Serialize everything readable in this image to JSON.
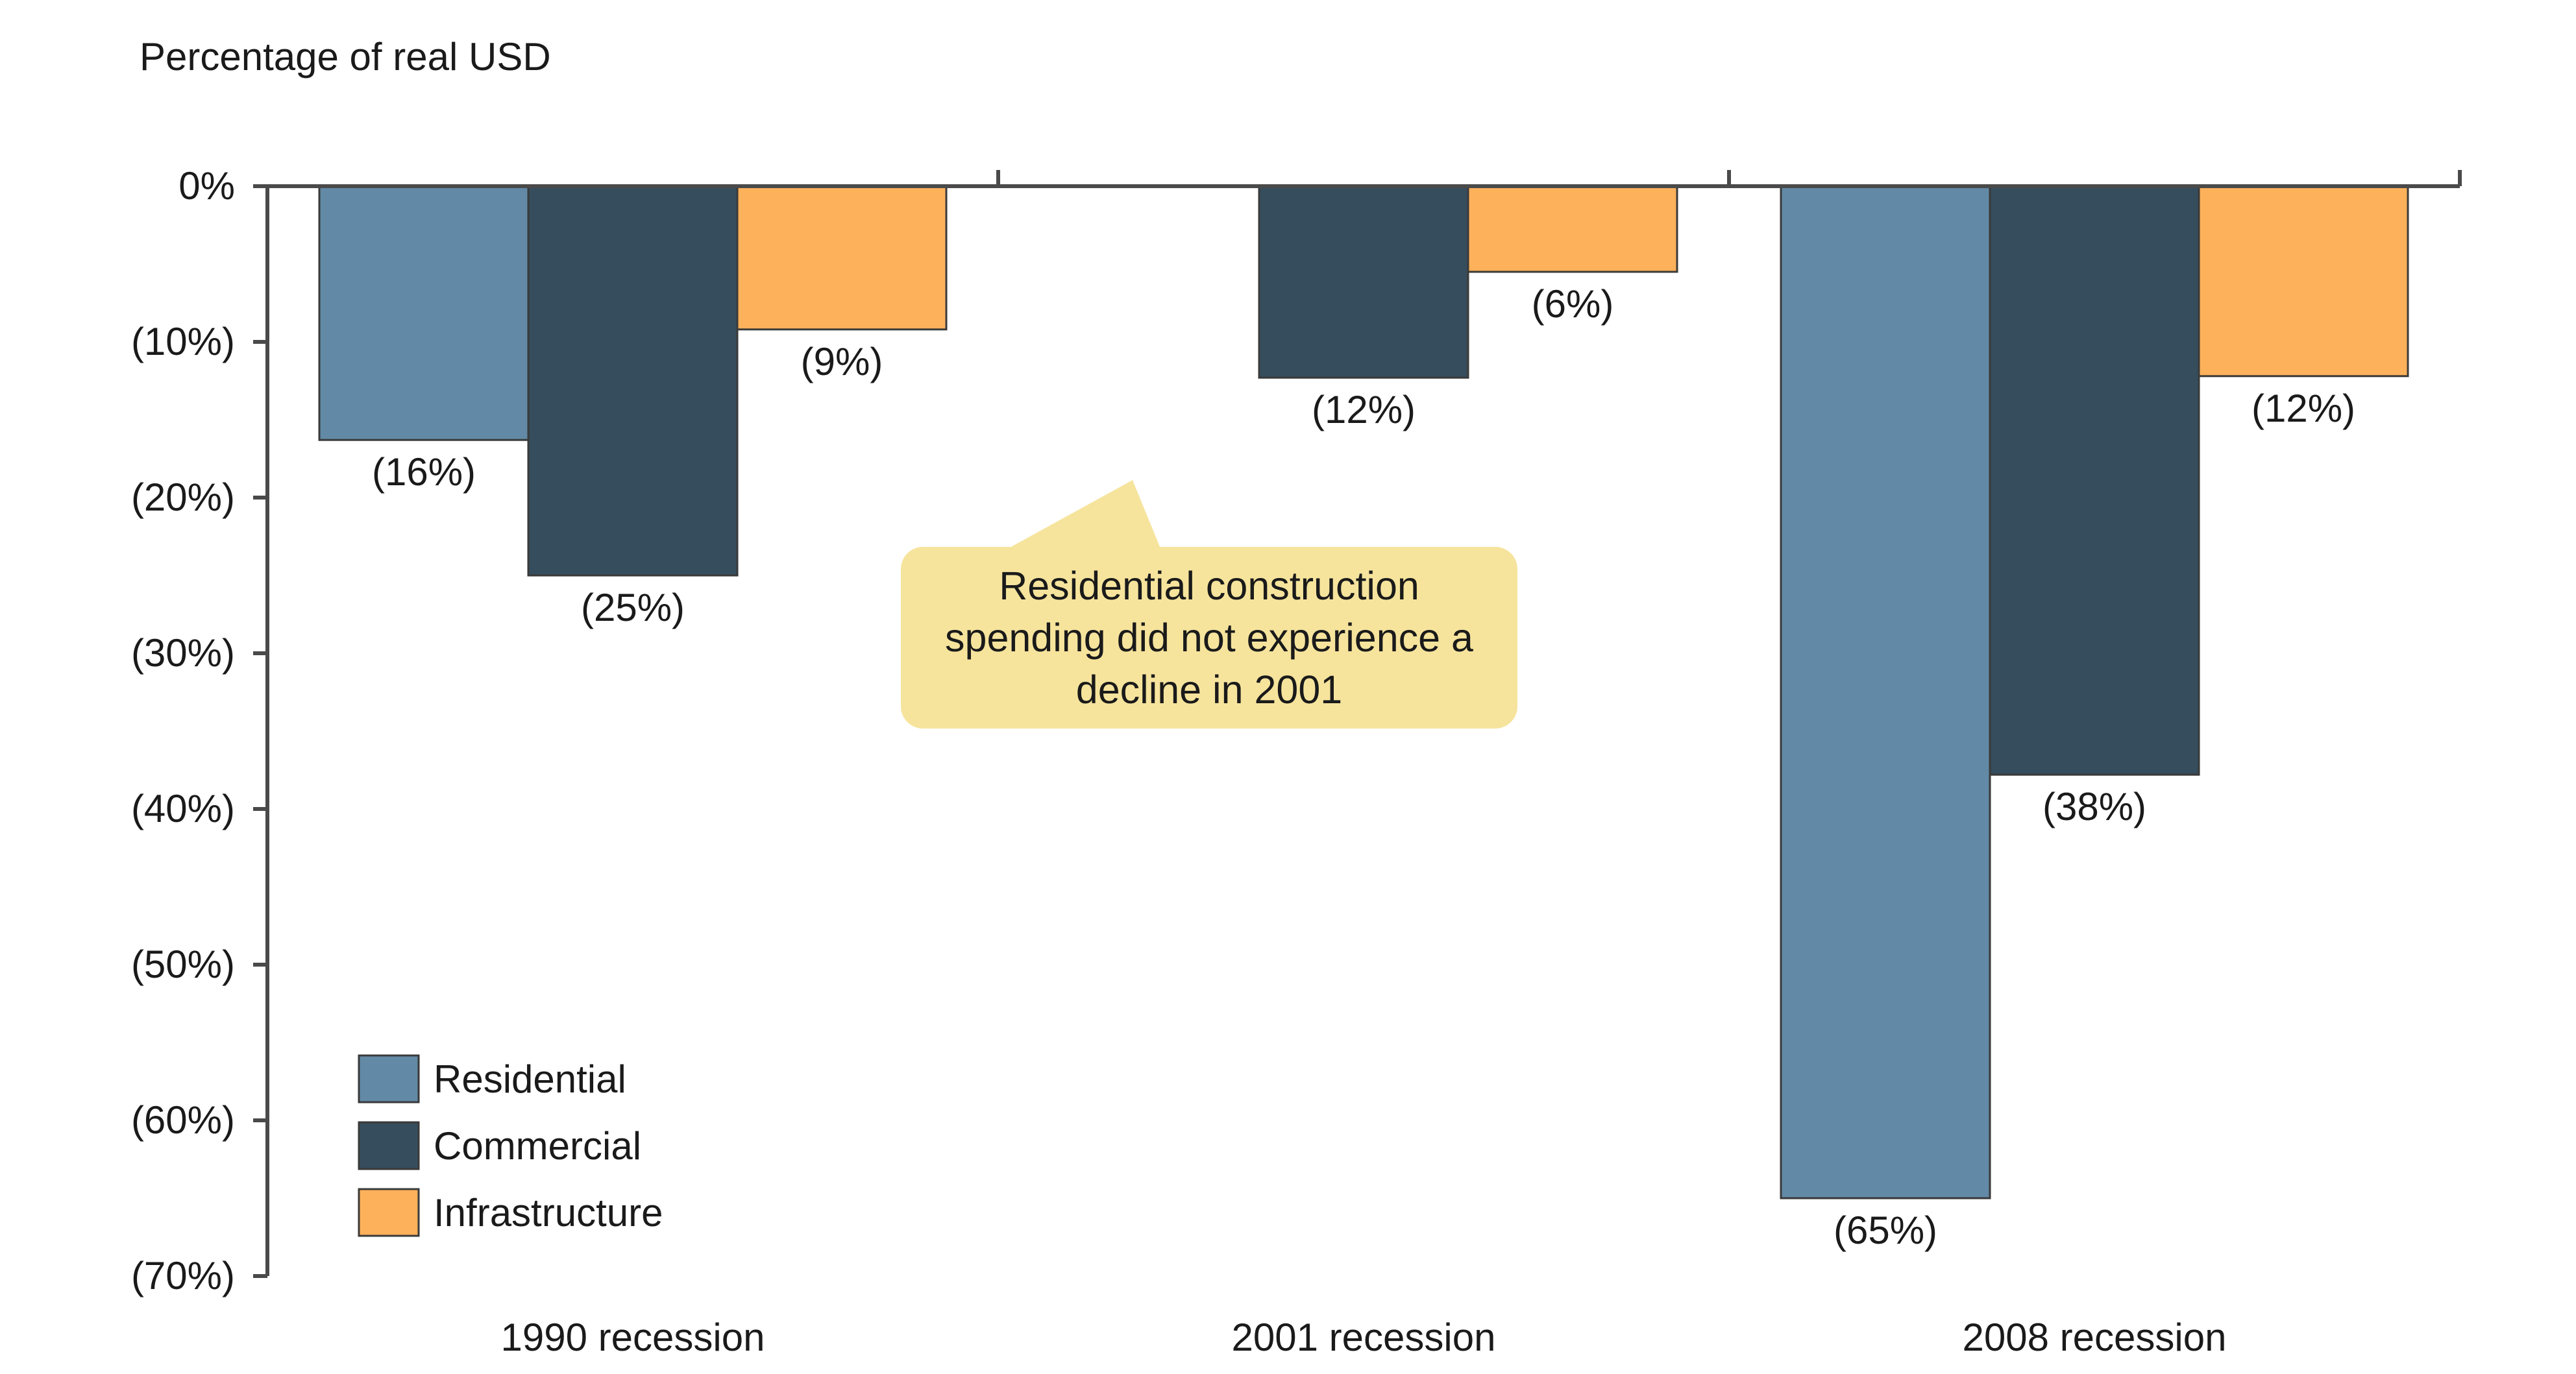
{
  "chart_data": {
    "type": "bar",
    "ylabel": "Percentage of real USD",
    "ylim": [
      -70,
      0
    ],
    "y_ticks": [
      {
        "value": 0,
        "label": "0%"
      },
      {
        "value": -10,
        "label": "(10%)"
      },
      {
        "value": -20,
        "label": "(20%)"
      },
      {
        "value": -30,
        "label": "(30%)"
      },
      {
        "value": -40,
        "label": "(40%)"
      },
      {
        "value": -50,
        "label": "(50%)"
      },
      {
        "value": -60,
        "label": "(60%)"
      },
      {
        "value": -70,
        "label": "(70%)"
      }
    ],
    "categories": [
      "1990 recession",
      "2001 recession",
      "2008 recession"
    ],
    "series": [
      {
        "name": "Residential",
        "color": "#628aa6",
        "values": [
          -16.3,
          0,
          -65
        ],
        "labels": [
          "(16%)",
          "",
          "(65%)"
        ]
      },
      {
        "name": "Commercial",
        "color": "#364d5d",
        "values": [
          -25,
          -12.3,
          -37.8
        ],
        "labels": [
          "(25%)",
          "(12%)",
          "(38%)"
        ]
      },
      {
        "name": "Infrastructure",
        "color": "#fdb15b",
        "values": [
          -9.2,
          -5.5,
          -12.2
        ],
        "labels": [
          "(9%)",
          "(6%)",
          "(12%)"
        ]
      }
    ],
    "legend_position": "bottom-left",
    "grid": false,
    "annotation": "Residential construction spending did not experience a decline in 2001"
  }
}
